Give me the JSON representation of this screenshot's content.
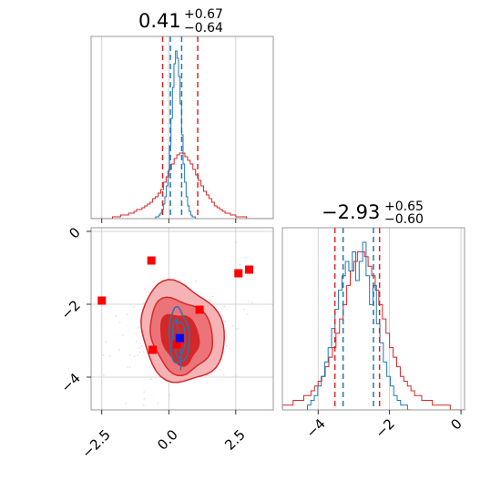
{
  "chart_data": [
    {
      "type": "histogram",
      "panel": "top-left",
      "title": {
        "value": "0.41",
        "plus": "+0.67",
        "minus": "−0.64"
      },
      "xlim": [
        -2.9,
        3.9
      ],
      "grid": true,
      "colors": {
        "red": "#d62728",
        "blue": "#1f77b4"
      },
      "quantile_lines": {
        "red": [
          -0.23,
          1.08
        ],
        "blue": [
          0.06,
          0.48
        ]
      },
      "hist_red": {
        "edges": [
          -2.9,
          3.9
        ],
        "counts": [
          0,
          0,
          0,
          0,
          0,
          0,
          0,
          0,
          1,
          1,
          1,
          2,
          2,
          2,
          3,
          3,
          4,
          5,
          5,
          6,
          7,
          8,
          9,
          11,
          12,
          14,
          16,
          20,
          23,
          27,
          30,
          33,
          35,
          36,
          36,
          34,
          32,
          30,
          27,
          24,
          21,
          18,
          15,
          13,
          11,
          9,
          7,
          6,
          5,
          4,
          3,
          3,
          2,
          2,
          1,
          1,
          1,
          1,
          0,
          0,
          0,
          0,
          0,
          0,
          0,
          0,
          0,
          0
        ]
      },
      "hist_blue": {
        "edges": [
          -0.6,
          1.1
        ],
        "counts": [
          0,
          0,
          1,
          1,
          2,
          3,
          5,
          8,
          12,
          18,
          26,
          40,
          55,
          72,
          85,
          92,
          88,
          78,
          63,
          46,
          30,
          20,
          12,
          7,
          4,
          2,
          1,
          1,
          0,
          0
        ]
      }
    },
    {
      "type": "contour",
      "panel": "bottom-left",
      "xlim": [
        -2.9,
        3.9
      ],
      "ylim": [
        -4.9,
        0.1
      ],
      "xticks": [
        "−2.5",
        "0.0",
        "2.5"
      ],
      "yticks": [
        "0",
        "−2",
        "−4"
      ],
      "grid": true,
      "red_markers": [
        {
          "x": -2.5,
          "y": -1.9
        },
        {
          "x": -0.65,
          "y": -0.8
        },
        {
          "x": 2.6,
          "y": -1.15
        },
        {
          "x": 3.0,
          "y": -1.05
        },
        {
          "x": 1.15,
          "y": -2.15
        },
        {
          "x": -0.6,
          "y": -3.25
        },
        {
          "x": 0.3,
          "y": -3.1
        }
      ],
      "blue_marker": {
        "x": 0.41,
        "y": -2.93
      }
    },
    {
      "type": "histogram",
      "panel": "bottom-right",
      "title": {
        "value": "−2.93",
        "plus": "+0.65",
        "minus": "−0.60"
      },
      "xlim": [
        -5.0,
        0.1
      ],
      "xticks": [
        "−4",
        "−2",
        "0"
      ],
      "grid": true,
      "quantile_lines": {
        "red": [
          -3.53,
          -2.28
        ],
        "blue": [
          -3.3,
          -2.45
        ]
      },
      "hist_red": {
        "edges": [
          -5.0,
          0.1
        ],
        "counts": [
          1,
          1,
          1,
          2,
          2,
          2,
          3,
          3,
          4,
          5,
          6,
          7,
          9,
          11,
          13,
          16,
          19,
          22,
          26,
          29,
          31,
          33,
          33,
          32,
          30,
          28,
          25,
          22,
          19,
          16,
          13,
          11,
          9,
          7,
          6,
          5,
          4,
          3,
          3,
          2,
          2,
          2,
          1,
          1,
          1,
          1,
          1,
          0,
          0,
          0,
          0
        ]
      },
      "hist_blue": {
        "edges": [
          -4.3,
          -1.4
        ],
        "counts": [
          1,
          2,
          3,
          5,
          7,
          10,
          13,
          17,
          21,
          25,
          28,
          31,
          29,
          33,
          27,
          31,
          35,
          28,
          22,
          26,
          18,
          14,
          10,
          7,
          5,
          3,
          2,
          1,
          1,
          0
        ]
      }
    }
  ]
}
